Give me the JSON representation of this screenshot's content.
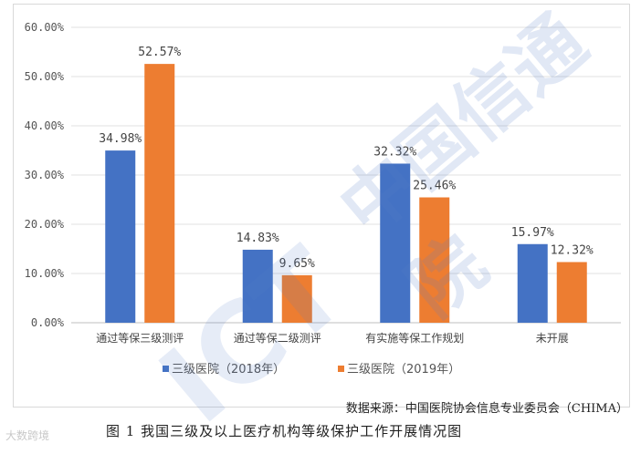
{
  "chart_data": {
    "type": "bar",
    "categories": [
      "通过等保三级测评",
      "通过等保二级测评",
      "有实施等保工作规划",
      "未开展"
    ],
    "series": [
      {
        "name": "三级医院（2018年）",
        "values": [
          34.98,
          14.83,
          32.32,
          15.97
        ],
        "labels": [
          "34.98%",
          "14.83%",
          "32.32%",
          "15.97%"
        ],
        "color": "#4472c4"
      },
      {
        "name": "三级医院（2019年）",
        "values": [
          52.57,
          9.65,
          25.46,
          12.32
        ],
        "labels": [
          "52.57%",
          "9.65%",
          "25.46%",
          "12.32%"
        ],
        "color": "#ed7d31"
      }
    ],
    "ylim": [
      0,
      60
    ],
    "yticks": [
      "0.00%",
      "10.00%",
      "20.00%",
      "30.00%",
      "40.00%",
      "50.00%",
      "60.00%"
    ],
    "grid": true,
    "legend": "bottom"
  },
  "source": "数据来源：中国医院协会信息专业委员会（CHIMA）",
  "caption": "图 1 我国三级及以上医疗机构等级保护工作开展情况图",
  "watermark": {
    "text": "中国信通院",
    "sub": "ICT",
    "brand": "大数跨境"
  }
}
